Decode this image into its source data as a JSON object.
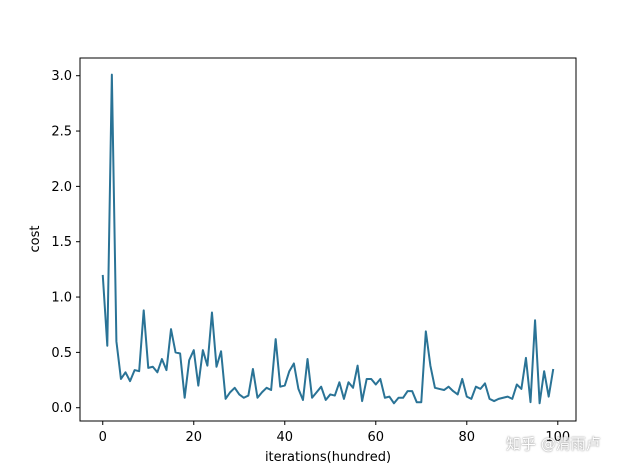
{
  "chart_data": {
    "type": "line",
    "xlabel": "iterations(hundred)",
    "ylabel": "cost",
    "xlim": [
      -5,
      104
    ],
    "ylim": [
      -0.12,
      3.16
    ],
    "xticks": [
      0,
      20,
      40,
      60,
      80,
      100
    ],
    "yticks": [
      0.0,
      0.5,
      1.0,
      1.5,
      2.0,
      2.5,
      3.0
    ],
    "xtick_labels": [
      "0",
      "20",
      "40",
      "60",
      "80",
      "100"
    ],
    "ytick_labels": [
      "0.0",
      "0.5",
      "1.0",
      "1.5",
      "2.0",
      "2.5",
      "3.0"
    ],
    "grid": false,
    "legend": "none",
    "series": [
      {
        "color": "#2a7396",
        "x": [
          0,
          1,
          2,
          3,
          4,
          5,
          6,
          7,
          8,
          9,
          10,
          11,
          12,
          13,
          14,
          15,
          16,
          17,
          18,
          19,
          20,
          21,
          22,
          23,
          24,
          25,
          26,
          27,
          28,
          29,
          30,
          31,
          32,
          33,
          34,
          35,
          36,
          37,
          38,
          39,
          40,
          41,
          42,
          43,
          44,
          45,
          46,
          47,
          48,
          49,
          50,
          51,
          52,
          53,
          54,
          55,
          56,
          57,
          58,
          59,
          60,
          61,
          62,
          63,
          64,
          65,
          66,
          67,
          68,
          69,
          70,
          71,
          72,
          73,
          74,
          75,
          76,
          77,
          78,
          79,
          80,
          81,
          82,
          83,
          84,
          85,
          86,
          87,
          88,
          89,
          90,
          91,
          92,
          93,
          94,
          95,
          96,
          97,
          98,
          99
        ],
        "values": [
          1.2,
          0.56,
          3.01,
          0.6,
          0.26,
          0.32,
          0.24,
          0.34,
          0.33,
          0.88,
          0.36,
          0.37,
          0.32,
          0.44,
          0.34,
          0.71,
          0.5,
          0.49,
          0.09,
          0.43,
          0.52,
          0.2,
          0.52,
          0.38,
          0.86,
          0.37,
          0.51,
          0.08,
          0.14,
          0.18,
          0.12,
          0.09,
          0.11,
          0.35,
          0.09,
          0.14,
          0.18,
          0.16,
          0.62,
          0.19,
          0.2,
          0.33,
          0.4,
          0.17,
          0.07,
          0.44,
          0.09,
          0.14,
          0.19,
          0.07,
          0.12,
          0.11,
          0.23,
          0.08,
          0.23,
          0.18,
          0.38,
          0.06,
          0.26,
          0.26,
          0.21,
          0.26,
          0.09,
          0.1,
          0.04,
          0.09,
          0.09,
          0.15,
          0.15,
          0.05,
          0.05,
          0.69,
          0.38,
          0.18,
          0.17,
          0.16,
          0.19,
          0.15,
          0.12,
          0.26,
          0.1,
          0.08,
          0.19,
          0.17,
          0.22,
          0.08,
          0.06,
          0.08,
          0.09,
          0.1,
          0.08,
          0.21,
          0.17,
          0.45,
          0.05,
          0.79,
          0.04,
          0.33,
          0.1,
          0.35
        ]
      }
    ]
  },
  "watermark": {
    "text": "知乎 @清雨卢"
  }
}
